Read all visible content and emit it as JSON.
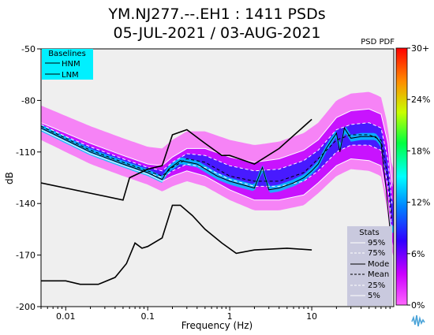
{
  "chart_data": {
    "type": "heatmap",
    "title": "YM.NJ277.--.EH1 : 1411 PSDs",
    "subtitle": "05-JUL-2021 / 03-AUG-2021",
    "xlabel": "Frequency (Hz)",
    "ylabel": "dB",
    "xscale": "log",
    "xlim": [
      0.005,
      100
    ],
    "ylim": [
      -200,
      -50
    ],
    "x_ticks": [
      "0.01",
      "0.1",
      "1",
      "10"
    ],
    "y_ticks": [
      "-50",
      "-80",
      "-110",
      "-140",
      "-170",
      "-200"
    ],
    "colorbar": {
      "label": "PSD PDF",
      "ticks": [
        "30+",
        "24%",
        "18%",
        "12%",
        "6%",
        "0%"
      ],
      "colors": [
        "#ff00ff",
        "#0000ff",
        "#00a0ff",
        "#00ffff",
        "#00ff60",
        "#ffff00",
        "#ff8000",
        "#ff0000"
      ]
    },
    "baselines": {
      "title": "Baselines",
      "entries": [
        "HNM",
        "LNM"
      ],
      "hnm": [
        [
          0.005,
          -128
        ],
        [
          0.05,
          -138
        ],
        [
          0.06,
          -125
        ],
        [
          0.1,
          -120
        ],
        [
          0.15,
          -118
        ],
        [
          0.2,
          -100
        ],
        [
          0.3,
          -97
        ],
        [
          0.5,
          -105
        ],
        [
          0.8,
          -112
        ],
        [
          1,
          -112
        ],
        [
          2,
          -117
        ],
        [
          4,
          -108
        ],
        [
          10,
          -91
        ]
      ],
      "lnm": [
        [
          0.005,
          -185
        ],
        [
          0.01,
          -185
        ],
        [
          0.015,
          -187
        ],
        [
          0.025,
          -187
        ],
        [
          0.04,
          -183
        ],
        [
          0.055,
          -175
        ],
        [
          0.07,
          -163
        ],
        [
          0.085,
          -166
        ],
        [
          0.1,
          -165
        ],
        [
          0.15,
          -160
        ],
        [
          0.2,
          -141
        ],
        [
          0.25,
          -141
        ],
        [
          0.35,
          -147
        ],
        [
          0.5,
          -155
        ],
        [
          0.8,
          -163
        ],
        [
          1.2,
          -169
        ],
        [
          2,
          -167
        ],
        [
          5,
          -166
        ],
        [
          10,
          -167
        ]
      ]
    },
    "stats": {
      "title": "Stats",
      "entries": [
        "95%",
        "75%",
        "Mode",
        "Mean",
        "25%",
        "5%"
      ],
      "mode": [
        [
          0.005,
          -96
        ],
        [
          0.01,
          -103
        ],
        [
          0.02,
          -110
        ],
        [
          0.05,
          -117
        ],
        [
          0.1,
          -122
        ],
        [
          0.15,
          -126
        ],
        [
          0.18,
          -120
        ],
        [
          0.25,
          -115
        ],
        [
          0.4,
          -117
        ],
        [
          0.7,
          -124
        ],
        [
          1,
          -127
        ],
        [
          2,
          -131
        ],
        [
          2.5,
          -119
        ],
        [
          3,
          -132
        ],
        [
          4,
          -131
        ],
        [
          6,
          -128
        ],
        [
          8,
          -125
        ],
        [
          10,
          -121
        ],
        [
          12,
          -117
        ],
        [
          15,
          -108
        ],
        [
          20,
          -99
        ],
        [
          22,
          -110
        ],
        [
          25,
          -96
        ],
        [
          30,
          -102
        ],
        [
          40,
          -101
        ],
        [
          60,
          -101
        ],
        [
          70,
          -105
        ],
        [
          80,
          -130
        ],
        [
          90,
          -155
        ]
      ],
      "mean": [
        [
          0.005,
          -95
        ],
        [
          0.01,
          -102
        ],
        [
          0.02,
          -109
        ],
        [
          0.05,
          -116
        ],
        [
          0.1,
          -121
        ],
        [
          0.15,
          -124
        ],
        [
          0.2,
          -119
        ],
        [
          0.3,
          -114
        ],
        [
          0.5,
          -116
        ],
        [
          1,
          -124
        ],
        [
          2,
          -127
        ],
        [
          4,
          -127
        ],
        [
          8,
          -122
        ],
        [
          12,
          -114
        ],
        [
          20,
          -103
        ],
        [
          30,
          -100
        ],
        [
          50,
          -100
        ],
        [
          70,
          -103
        ],
        [
          85,
          -125
        ],
        [
          95,
          -150
        ]
      ],
      "p95": [
        [
          0.005,
          -93
        ],
        [
          0.01,
          -99
        ],
        [
          0.02,
          -105
        ],
        [
          0.05,
          -112
        ],
        [
          0.1,
          -117
        ],
        [
          0.15,
          -118
        ],
        [
          0.2,
          -113
        ],
        [
          0.3,
          -108
        ],
        [
          0.5,
          -108
        ],
        [
          1,
          -113
        ],
        [
          2,
          -116
        ],
        [
          4,
          -114
        ],
        [
          8,
          -109
        ],
        [
          12,
          -103
        ],
        [
          20,
          -90
        ],
        [
          30,
          -86
        ],
        [
          50,
          -85
        ],
        [
          70,
          -88
        ],
        [
          85,
          -105
        ],
        [
          95,
          -130
        ]
      ],
      "p75": [
        [
          0.005,
          -94
        ],
        [
          0.01,
          -101
        ],
        [
          0.02,
          -107
        ],
        [
          0.05,
          -114
        ],
        [
          0.1,
          -119
        ],
        [
          0.15,
          -121
        ],
        [
          0.2,
          -116
        ],
        [
          0.3,
          -111
        ],
        [
          0.5,
          -112
        ],
        [
          1,
          -118
        ],
        [
          2,
          -121
        ],
        [
          4,
          -120
        ],
        [
          8,
          -115
        ],
        [
          12,
          -109
        ],
        [
          20,
          -97
        ],
        [
          30,
          -94
        ],
        [
          50,
          -93
        ],
        [
          70,
          -96
        ],
        [
          85,
          -115
        ],
        [
          95,
          -140
        ]
      ],
      "p25": [
        [
          0.005,
          -96
        ],
        [
          0.01,
          -103
        ],
        [
          0.02,
          -110
        ],
        [
          0.05,
          -117
        ],
        [
          0.1,
          -122
        ],
        [
          0.15,
          -125
        ],
        [
          0.2,
          -121
        ],
        [
          0.3,
          -117
        ],
        [
          0.5,
          -119
        ],
        [
          1,
          -126
        ],
        [
          2,
          -130
        ],
        [
          4,
          -130
        ],
        [
          8,
          -127
        ],
        [
          12,
          -121
        ],
        [
          20,
          -110
        ],
        [
          30,
          -106
        ],
        [
          50,
          -106
        ],
        [
          70,
          -109
        ],
        [
          85,
          -130
        ],
        [
          95,
          -155
        ]
      ],
      "p5": [
        [
          0.005,
          -97
        ],
        [
          0.01,
          -104
        ],
        [
          0.02,
          -111
        ],
        [
          0.05,
          -118
        ],
        [
          0.1,
          -123
        ],
        [
          0.15,
          -127
        ],
        [
          0.2,
          -124
        ],
        [
          0.3,
          -121
        ],
        [
          0.5,
          -124
        ],
        [
          1,
          -132
        ],
        [
          2,
          -138
        ],
        [
          4,
          -138
        ],
        [
          8,
          -135
        ],
        [
          12,
          -128
        ],
        [
          20,
          -118
        ],
        [
          30,
          -114
        ],
        [
          50,
          -115
        ],
        [
          70,
          -118
        ],
        [
          85,
          -140
        ],
        [
          95,
          -165
        ]
      ]
    }
  }
}
